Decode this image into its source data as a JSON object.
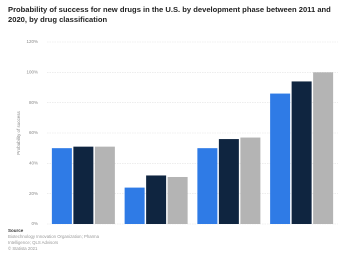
{
  "chart_data": {
    "type": "bar",
    "title": "Probability of success for new drugs in the U.S. by development phase between 2011 and 2020, by drug classification",
    "y_label": "Probability of success",
    "categories": [
      null,
      null,
      null,
      null
    ],
    "series": [
      {
        "color": "#2f7be6",
        "values": [
          50,
          24,
          50,
          86
        ]
      },
      {
        "color": "#0f2540",
        "values": [
          51,
          32,
          56,
          94
        ]
      },
      {
        "color": "#b4b4b4",
        "values": [
          51,
          31,
          57,
          100
        ]
      }
    ],
    "ylim": [
      0,
      120
    ],
    "yticks": [
      {
        "value": 0,
        "label": "0%"
      },
      {
        "value": 20,
        "label": "20%"
      },
      {
        "value": 40,
        "label": "40%"
      },
      {
        "value": 60,
        "label": "60%"
      },
      {
        "value": 80,
        "label": "80%"
      },
      {
        "value": 100,
        "label": "100%"
      },
      {
        "value": 120,
        "label": "120%"
      }
    ],
    "grid": true,
    "source": {
      "heading": "Source",
      "lines": [
        "Biotechnology Innovation Organization; Pharma",
        "Intelligence; QLS Advisors",
        "© Statista 2021"
      ]
    }
  }
}
